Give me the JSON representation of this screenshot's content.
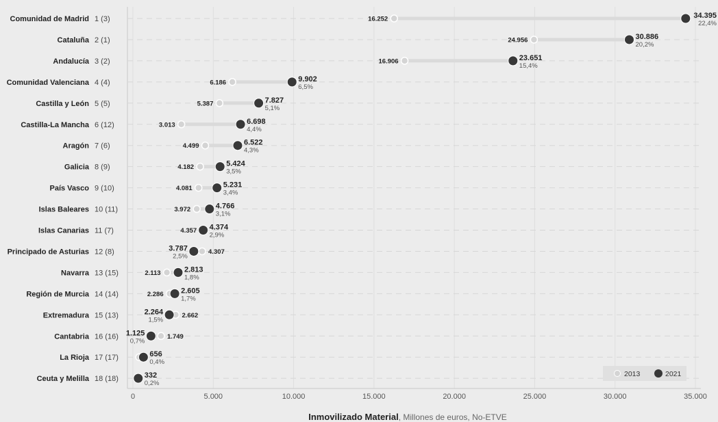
{
  "chart_data": {
    "type": "dot-plot",
    "title": "",
    "xlabel": "Inmovilizado Material",
    "xlabel_suffix": ", Millones de euros, No-ETVE",
    "xlim": [
      0,
      35000
    ],
    "xticks": [
      0,
      5000,
      10000,
      15000,
      20000,
      25000,
      30000,
      35000
    ],
    "xtick_labels": [
      "0",
      "5.000",
      "10.000",
      "15.000",
      "20.000",
      "25.000",
      "30.000",
      "35.000"
    ],
    "grid": "dashed",
    "legend": {
      "placement": "bottom-right",
      "items": [
        {
          "name": "2013",
          "color": "#d4d4d4"
        },
        {
          "name": "2021",
          "color": "#383838"
        }
      ]
    },
    "series": [
      {
        "name": "2013",
        "color": "#d4d4d4"
      },
      {
        "name": "2021",
        "color": "#383838"
      }
    ],
    "rows": [
      {
        "region": "Comunidad de Madrid",
        "rank": "1 (3)",
        "v2013": 16252,
        "v2013_label": "16.252",
        "v2021": 34395,
        "v2021_label": "34.395",
        "pct": "22,4%"
      },
      {
        "region": "Cataluña",
        "rank": "2 (1)",
        "v2013": 24956,
        "v2013_label": "24.956",
        "v2021": 30886,
        "v2021_label": "30.886",
        "pct": "20,2%"
      },
      {
        "region": "Andalucía",
        "rank": "3 (2)",
        "v2013": 16906,
        "v2013_label": "16.906",
        "v2021": 23651,
        "v2021_label": "23.651",
        "pct": "15,4%"
      },
      {
        "region": "Comunidad Valenciana",
        "rank": "4 (4)",
        "v2013": 6186,
        "v2013_label": "6.186",
        "v2021": 9902,
        "v2021_label": "9.902",
        "pct": "6,5%"
      },
      {
        "region": "Castilla y León",
        "rank": "5 (5)",
        "v2013": 5387,
        "v2013_label": "5.387",
        "v2021": 7827,
        "v2021_label": "7.827",
        "pct": "5,1%"
      },
      {
        "region": "Castilla-La Mancha",
        "rank": "6 (12)",
        "v2013": 3013,
        "v2013_label": "3.013",
        "v2021": 6698,
        "v2021_label": "6.698",
        "pct": "4,4%"
      },
      {
        "region": "Aragón",
        "rank": "7 (6)",
        "v2013": 4499,
        "v2013_label": "4.499",
        "v2021": 6522,
        "v2021_label": "6.522",
        "pct": "4,3%"
      },
      {
        "region": "Galicia",
        "rank": "8 (9)",
        "v2013": 4182,
        "v2013_label": "4.182",
        "v2021": 5424,
        "v2021_label": "5.424",
        "pct": "3,5%"
      },
      {
        "region": "País Vasco",
        "rank": "9 (10)",
        "v2013": 4081,
        "v2013_label": "4.081",
        "v2021": 5231,
        "v2021_label": "5.231",
        "pct": "3,4%"
      },
      {
        "region": "Islas Baleares",
        "rank": "10 (11)",
        "v2013": 3972,
        "v2013_label": "3.972",
        "v2021": 4766,
        "v2021_label": "4.766",
        "pct": "3,1%"
      },
      {
        "region": "Islas Canarias",
        "rank": "11 (7)",
        "v2013": 4357,
        "v2013_label": "4.357",
        "v2021": 4374,
        "v2021_label": "4.374",
        "pct": "2,9%"
      },
      {
        "region": "Principado de Asturias",
        "rank": "12 (8)",
        "v2013": 4307,
        "v2013_label": "4.307",
        "v2021": 3787,
        "v2021_label": "3.787",
        "pct": "2,5%"
      },
      {
        "region": "Navarra",
        "rank": "13 (15)",
        "v2013": 2113,
        "v2013_label": "2.113",
        "v2021": 2813,
        "v2021_label": "2.813",
        "pct": "1,8%"
      },
      {
        "region": "Región de Murcia",
        "rank": "14 (14)",
        "v2013": 2286,
        "v2013_label": "2.286",
        "v2021": 2605,
        "v2021_label": "2.605",
        "pct": "1,7%"
      },
      {
        "region": "Extremadura",
        "rank": "15 (13)",
        "v2013": 2662,
        "v2013_label": "2.662",
        "v2021": 2264,
        "v2021_label": "2.264",
        "pct": "1,5%"
      },
      {
        "region": "Cantabria",
        "rank": "16 (16)",
        "v2013": 1749,
        "v2013_label": "1.749",
        "v2021": 1125,
        "v2021_label": "1.125",
        "pct": "0,7%"
      },
      {
        "region": "La Rioja",
        "rank": "17 (17)",
        "v2013": 390,
        "v2013_label": "",
        "v2021": 656,
        "v2021_label": "656",
        "pct": "0,4%"
      },
      {
        "region": "Ceuta y Melilla",
        "rank": "18 (18)",
        "v2013": 250,
        "v2013_label": "",
        "v2021": 332,
        "v2021_label": "332",
        "pct": "0,2%"
      }
    ]
  }
}
